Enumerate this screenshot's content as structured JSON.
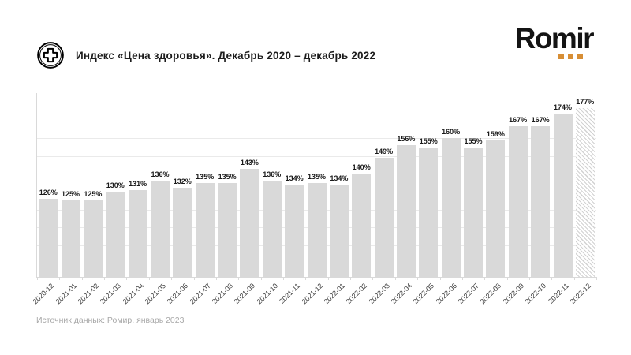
{
  "header": {
    "title": "Индекс «Цена здоровья». Декабрь 2020 – декабрь 2022",
    "icon": "health-cross-icon"
  },
  "logo": {
    "text": "Romir",
    "dot_color": "#D78E35",
    "dot_count": 3
  },
  "chart_data": {
    "type": "bar",
    "title": "Индекс «Цена здоровья». Декабрь 2020 – декабрь 2022",
    "categories": [
      "2020-12",
      "2021-01",
      "2021-02",
      "2021-03",
      "2021-04",
      "2021-05",
      "2021-06",
      "2021-07",
      "2021-08",
      "2021-09",
      "2021-10",
      "2021-11",
      "2021-12",
      "2022-01",
      "2022-02",
      "2022-03",
      "2022-04",
      "2022-05",
      "2022-06",
      "2022-07",
      "2022-08",
      "2022-09",
      "2022-10",
      "2022-11",
      "2022-12"
    ],
    "values": [
      126,
      125,
      125,
      130,
      131,
      136,
      132,
      135,
      135,
      143,
      136,
      134,
      135,
      134,
      140,
      149,
      156,
      155,
      160,
      155,
      159,
      167,
      167,
      174,
      177
    ],
    "unit": "%",
    "bar_color": "#d9d9d9",
    "hatched_last": true,
    "ylim": [
      82,
      185.5
    ],
    "gridlines": {
      "from": 90,
      "to": 180,
      "step": 10
    },
    "grid_color": "#eaeaea",
    "legend": "none",
    "xlabel": "",
    "ylabel": ""
  },
  "footer": {
    "source": "Источник данных: Ромир, январь 2023"
  }
}
